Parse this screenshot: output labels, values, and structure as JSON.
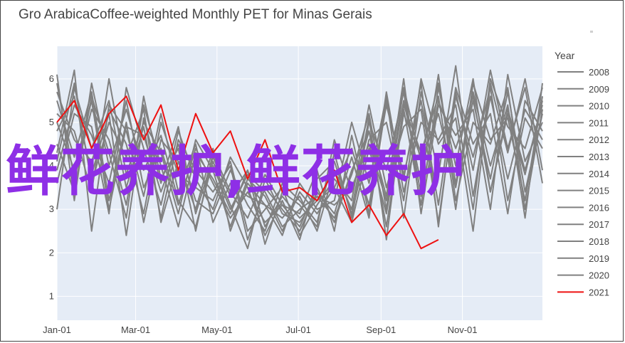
{
  "chart_data": {
    "type": "line",
    "title": "Gro ArabicaCoffee-weighted Monthly PET for Minas Gerais",
    "xlabel": "",
    "ylabel": "",
    "x_range": [
      "2021-01-01",
      "2021-12-31"
    ],
    "ylim": [
      0.45,
      6.75
    ],
    "x_ticks": [
      "Jan-01",
      "Mar-01",
      "May-01",
      "Jul-01",
      "Sep-01",
      "Nov-01"
    ],
    "y_ticks": [
      1,
      2,
      3,
      4,
      5,
      6
    ],
    "grid": true,
    "legend": {
      "title": "Year",
      "placement": "right",
      "entries": [
        "2008",
        "2009",
        "2010",
        "2011",
        "2012",
        "2013",
        "2014",
        "2015",
        "2016",
        "2017",
        "2018",
        "2019",
        "2020",
        "2021"
      ]
    },
    "series": [
      {
        "name": "2008",
        "color": "#808080",
        "values": [
          4.8,
          5.6,
          3.8,
          5.2,
          2.4,
          5.1,
          3.6,
          4.9,
          2.9,
          4.2,
          3.3,
          3.9,
          2.6,
          3.3,
          2.8,
          3.2,
          3.5,
          2.7,
          4.4,
          2.9,
          5.3,
          3.1,
          5.8,
          4.0,
          6.0,
          3.4,
          5.3,
          3.9,
          5.4
        ]
      },
      {
        "name": "2009",
        "color": "#808080",
        "values": [
          5.5,
          4.2,
          5.7,
          3.2,
          5.0,
          2.7,
          4.6,
          4.1,
          3.0,
          4.4,
          2.5,
          3.6,
          3.1,
          2.8,
          3.3,
          2.5,
          3.9,
          3.0,
          5.1,
          2.3,
          5.4,
          4.3,
          5.6,
          3.0,
          5.9,
          4.6,
          5.1,
          3.2,
          5.6
        ]
      },
      {
        "name": "2010",
        "color": "#808080",
        "values": [
          3.0,
          5.8,
          4.4,
          5.5,
          3.5,
          4.9,
          2.8,
          4.6,
          3.9,
          3.4,
          4.0,
          2.3,
          3.5,
          3.0,
          2.5,
          3.4,
          2.9,
          4.2,
          2.8,
          5.5,
          3.7,
          5.9,
          2.6,
          5.7,
          3.9,
          6.2,
          4.4,
          5.8,
          3.6
        ]
      },
      {
        "name": "2011",
        "color": "#808080",
        "values": [
          5.9,
          3.7,
          5.3,
          4.6,
          3.1,
          5.4,
          4.0,
          2.6,
          4.3,
          3.7,
          2.9,
          3.9,
          2.2,
          3.4,
          3.1,
          2.6,
          4.6,
          3.4,
          4.8,
          3.3,
          6.0,
          2.9,
          5.4,
          4.7,
          5.3,
          3.0,
          6.1,
          4.1,
          5.0
        ]
      },
      {
        "name": "2012",
        "color": "#808080",
        "values": [
          4.3,
          6.2,
          2.5,
          5.4,
          4.8,
          3.3,
          5.2,
          3.4,
          4.5,
          2.7,
          3.6,
          3.3,
          3.1,
          2.4,
          3.6,
          3.0,
          3.2,
          5.0,
          3.6,
          5.6,
          2.8,
          5.7,
          3.8,
          6.3,
          3.3,
          5.6,
          3.7,
          5.3,
          4.6
        ]
      },
      {
        "name": "2013",
        "color": "#808080",
        "values": [
          6.1,
          3.2,
          5.9,
          4.0,
          5.3,
          3.9,
          4.7,
          3.2,
          2.6,
          4.1,
          3.1,
          2.1,
          3.7,
          2.9,
          2.7,
          3.3,
          2.8,
          3.8,
          5.2,
          3.0,
          5.8,
          4.1,
          5.2,
          3.5,
          5.7,
          4.0,
          5.4,
          2.8,
          5.9
        ]
      },
      {
        "name": "2014",
        "color": "#808080",
        "values": [
          3.6,
          5.2,
          4.9,
          2.9,
          5.8,
          4.4,
          3.1,
          4.8,
          3.7,
          3.0,
          4.2,
          3.5,
          2.4,
          3.2,
          2.3,
          3.7,
          4.1,
          2.9,
          4.6,
          5.0,
          3.2,
          6.0,
          4.5,
          5.1,
          2.5,
          5.9,
          4.3,
          6.0,
          3.9
        ]
      },
      {
        "name": "2015",
        "color": "#808080",
        "values": [
          5.2,
          4.8,
          3.4,
          6.0,
          3.8,
          5.0,
          4.3,
          2.9,
          4.6,
          3.9,
          2.6,
          3.7,
          3.3,
          2.5,
          3.4,
          2.9,
          3.5,
          4.4,
          3.1,
          5.4,
          3.8,
          5.5,
          3.1,
          5.8,
          4.5,
          5.2,
          2.9,
          5.5,
          4.8
        ]
      },
      {
        "name": "2016",
        "color": "#808080",
        "values": [
          4.5,
          3.4,
          5.6,
          4.3,
          2.8,
          5.6,
          3.7,
          4.4,
          2.5,
          4.3,
          3.4,
          2.8,
          3.8,
          3.1,
          2.6,
          3.5,
          2.7,
          3.9,
          4.8,
          2.6,
          5.2,
          4.2,
          5.9,
          3.6,
          5.5,
          3.7,
          5.7,
          3.4,
          5.2
        ]
      },
      {
        "name": "2017",
        "color": "#808080",
        "values": [
          5.7,
          4.6,
          4.1,
          5.3,
          4.5,
          2.9,
          5.0,
          3.8,
          3.5,
          3.2,
          4.1,
          2.5,
          3.0,
          3.5,
          2.4,
          3.1,
          3.7,
          3.2,
          5.4,
          3.5,
          4.9,
          5.3,
          2.7,
          5.6,
          4.2,
          5.8,
          3.2,
          5.1,
          4.4
        ]
      },
      {
        "name": "2018",
        "color": "#808080",
        "values": [
          3.9,
          5.4,
          4.7,
          3.6,
          5.5,
          3.5,
          4.4,
          3.1,
          4.4,
          3.6,
          2.8,
          3.4,
          2.7,
          3.1,
          2.9,
          3.9,
          2.5,
          4.7,
          2.9,
          5.7,
          3.4,
          5.0,
          4.6,
          5.4,
          3.0,
          6.0,
          4.9,
          4.4,
          5.8
        ]
      },
      {
        "name": "2019",
        "color": "#808080",
        "values": [
          5.0,
          3.9,
          5.5,
          3.0,
          4.9,
          4.7,
          3.4,
          4.5,
          3.2,
          2.9,
          3.9,
          3.1,
          2.5,
          3.6,
          3.2,
          2.7,
          4.3,
          2.8,
          5.0,
          3.9,
          5.7,
          3.3,
          5.5,
          4.4,
          5.6,
          3.4,
          5.2,
          3.8,
          5.5
        ]
      },
      {
        "name": "2020",
        "color": "#808080",
        "values": [
          4.1,
          5.9,
          3.6,
          5.0,
          4.2,
          5.3,
          2.7,
          4.1,
          3.8,
          4.0,
          3.0,
          3.8,
          3.4,
          2.6,
          3.0,
          3.3,
          3.1,
          3.5,
          4.5,
          3.2,
          5.5,
          3.6,
          6.1,
          3.2,
          5.0,
          4.5,
          5.8,
          3.0,
          5.3
        ]
      },
      {
        "name": "2021",
        "color": "#ee1111",
        "values": [
          5.0,
          5.5,
          4.4,
          5.2,
          5.6,
          4.6,
          5.4,
          3.9,
          5.2,
          4.3,
          4.8,
          3.7,
          4.6,
          3.4,
          3.5,
          3.2,
          3.9,
          2.7,
          3.1,
          2.4,
          2.9,
          2.1,
          2.3
        ]
      }
    ]
  },
  "overlay": {
    "text": "鲜花养护,鲜花养护"
  }
}
